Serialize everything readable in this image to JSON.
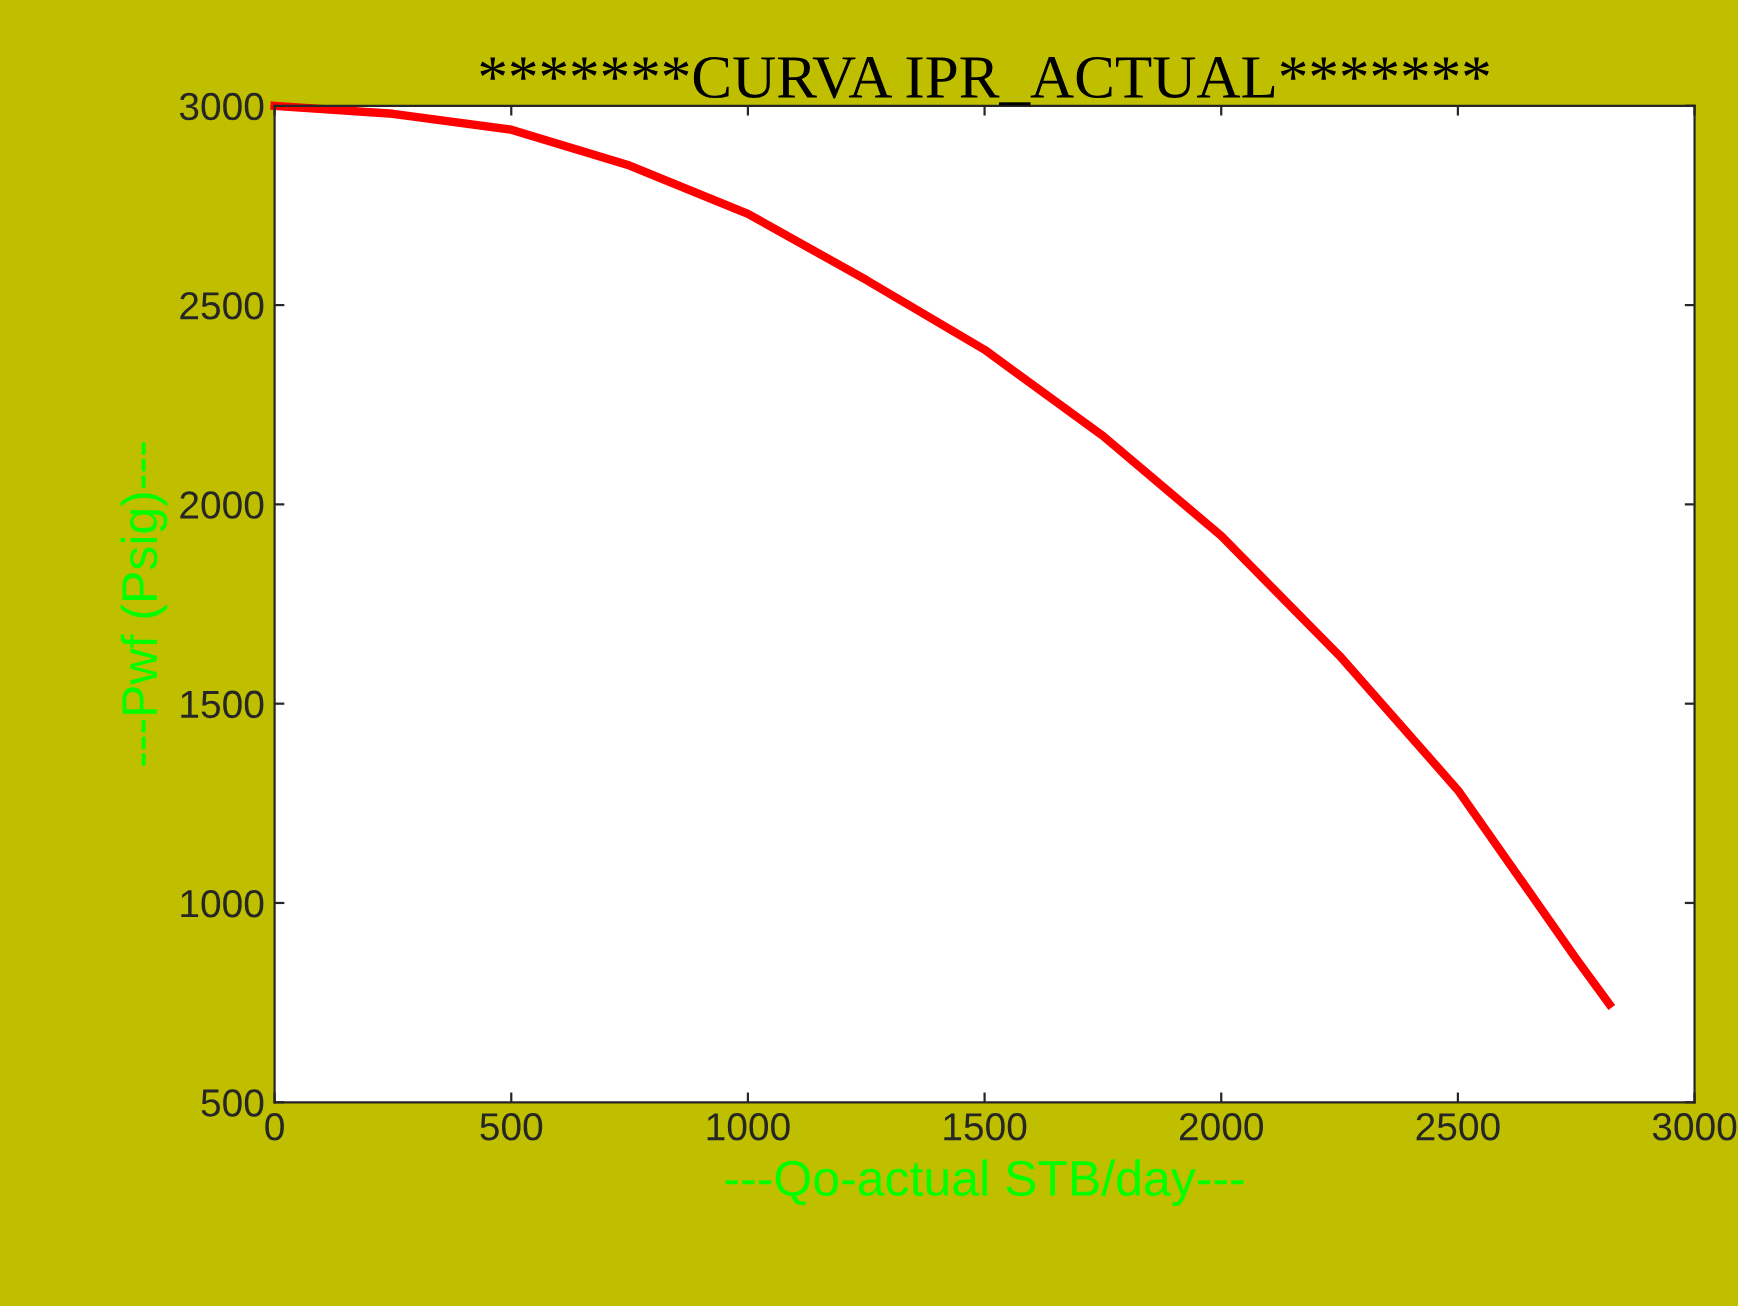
{
  "chart_data": {
    "type": "line",
    "title": "*******CURVA IPR_ACTUAL*******",
    "xlabel": "---Qo-actual STB/day---",
    "ylabel": "---Pwf (Psig)---",
    "x": [
      0,
      250,
      500,
      750,
      1000,
      1250,
      1500,
      1750,
      2000,
      2250,
      2500,
      2750,
      2820
    ],
    "series": [
      {
        "color": "#ff0000",
        "values": [
          3000,
          2980,
          2940,
          2850,
          2729,
          2563,
          2388,
          2172,
          1921,
          1620,
          1283,
          860,
          746
        ]
      }
    ],
    "xlim": [
      0,
      3000
    ],
    "ylim": [
      500,
      3000
    ],
    "xticks": [
      0,
      500,
      1000,
      1500,
      2000,
      2500,
      3000
    ],
    "yticks": [
      500,
      1000,
      1500,
      2000,
      2500,
      3000
    ],
    "grid": false,
    "legend": false,
    "marker": "none",
    "line_style": "solid"
  }
}
